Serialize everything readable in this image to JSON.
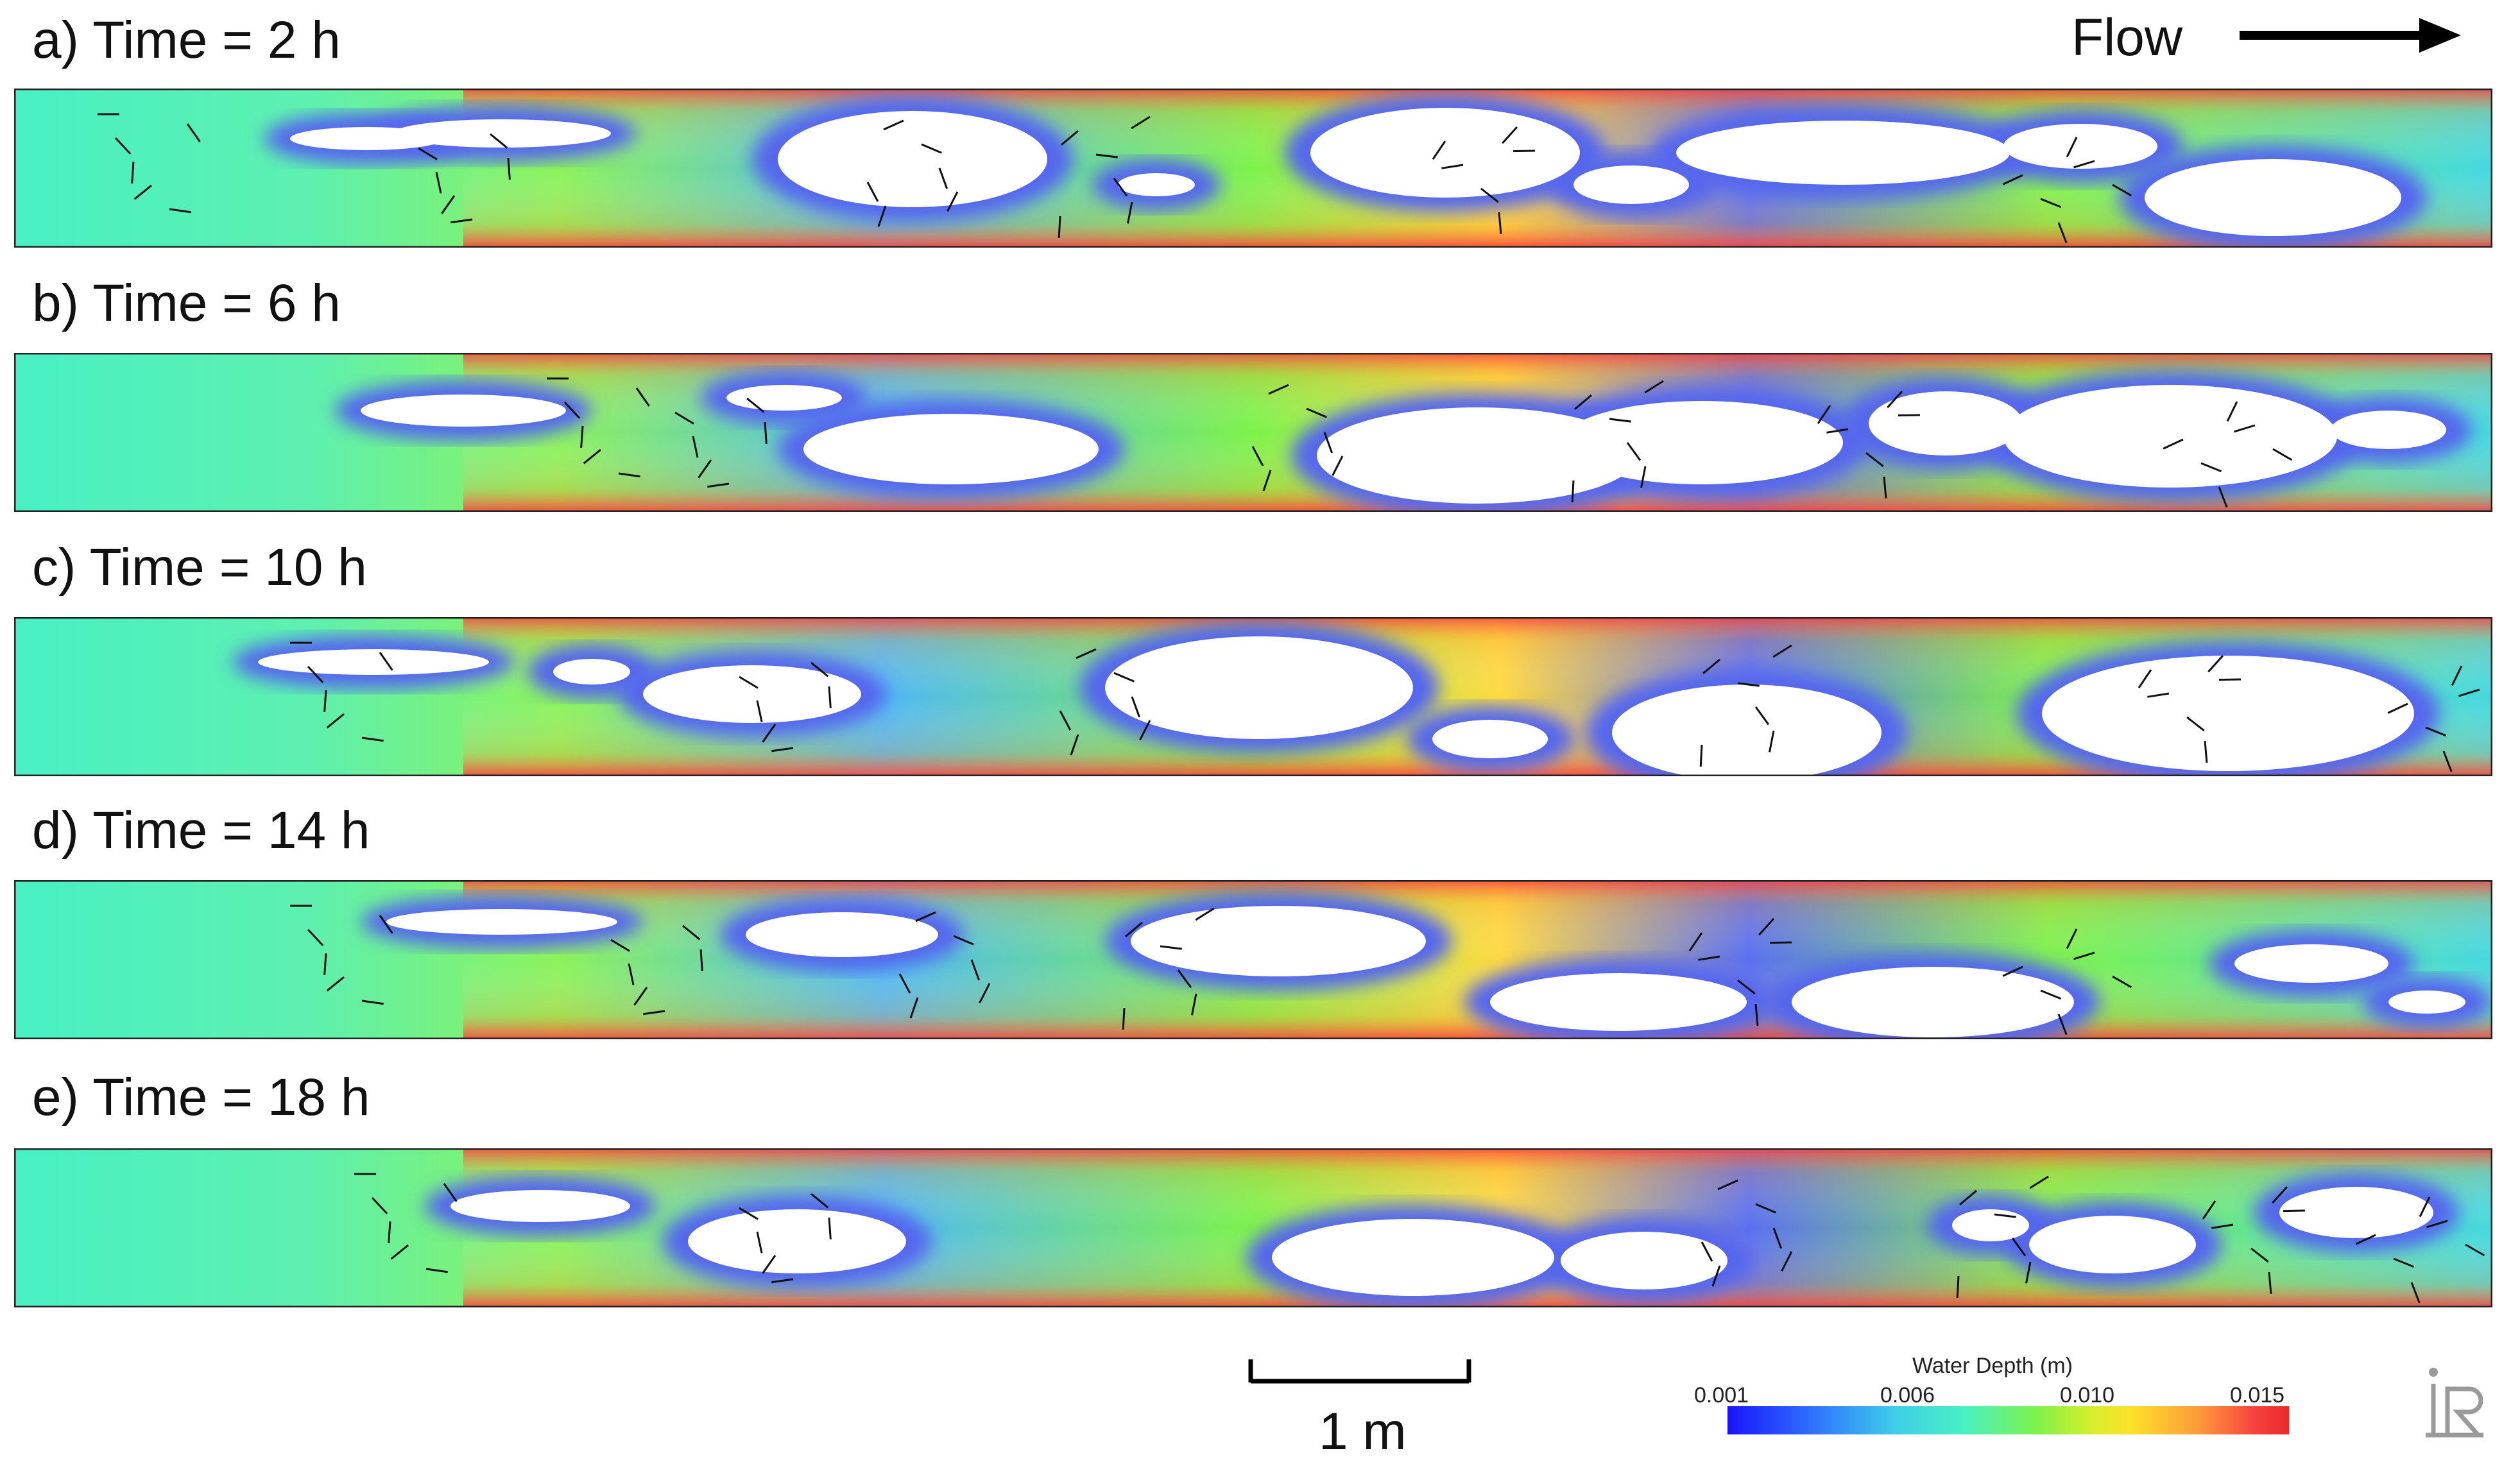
{
  "panels": [
    {
      "title": "a) Time = 2 h"
    },
    {
      "title": "b) Time = 6 h"
    },
    {
      "title": "c) Time = 10 h"
    },
    {
      "title": "d) Time = 14 h"
    },
    {
      "title": "e) Time = 18 h"
    }
  ],
  "flow": {
    "label": "Flow",
    "direction": "right"
  },
  "scale": {
    "label": "1 m"
  },
  "legend": {
    "title": "Water Depth (m)",
    "ticks": [
      "0.001",
      "0.006",
      "0.010",
      "0.015"
    ],
    "colors": [
      "#1a14ff",
      "#3ecfe8",
      "#7ef24a",
      "#fde02a",
      "#ea2a2a"
    ]
  },
  "logo": {
    "icon": "iric-logo-icon"
  }
}
